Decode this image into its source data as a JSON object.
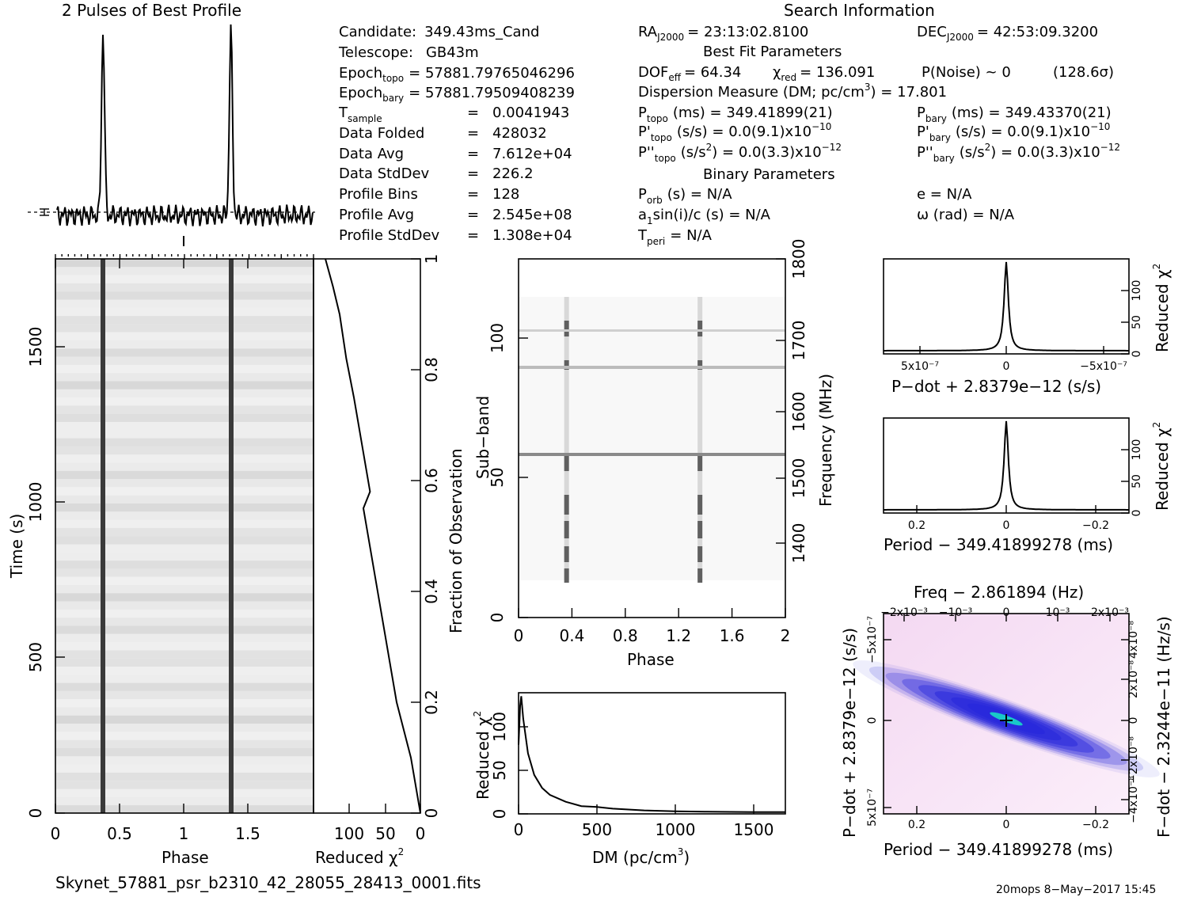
{
  "title_left": "2 Pulses of Best Profile",
  "title_right": "Search Information",
  "info": {
    "candidate_label": "Candidate:",
    "candidate": "349.43ms_Cand",
    "telescope_label": "Telescope:",
    "telescope": "GB43m",
    "epoch_topo_label": "Epoch",
    "epoch_topo_sub": "topo",
    "epoch_topo": "= 57881.79765046296",
    "epoch_bary_label": "Epoch",
    "epoch_bary_sub": "bary",
    "epoch_bary": "= 57881.79509408239",
    "tsample_label": "T",
    "tsample_sub": "sample",
    "tsample": "0.0041943",
    "folded_label": "Data Folded",
    "folded": "428032",
    "avg_label": "Data Avg",
    "avg": "7.612e+04",
    "stddev_label": "Data StdDev",
    "stddev": "226.2",
    "bins_label": "Profile Bins",
    "bins": "128",
    "pavg_label": "Profile Avg",
    "pavg": "2.545e+08",
    "pstd_label": "Profile StdDev",
    "pstd": "1.308e+04",
    "eq": "="
  },
  "search": {
    "ra_label": "RA",
    "ra_sub": "J2000",
    "ra": "= 23:13:02.8100",
    "dec_label": "DEC",
    "dec_sub": "J2000",
    "dec": "= 42:53:09.3200",
    "best_fit": "Best Fit Parameters",
    "dof_label": "DOF",
    "dof_sub": "eff",
    "dof": "= 64.34",
    "chi_label": "χ",
    "chi_sub": "red",
    "chi": "= 136.091",
    "pnoise": "P(Noise) ~ 0",
    "sigma": "(128.6σ)",
    "dm_label": "Dispersion Measure (DM; pc/cm",
    "dm": ") = 17.801",
    "ptopo_label": "P",
    "ptopo_sub": "topo",
    "ptopo": "(ms) =  349.41899(21)",
    "pbary_label": "P",
    "pbary_sub": "bary",
    "pbary": "(ms) =  349.43370(21)",
    "pdtopo_label": "P'",
    "pdtopo_sub": "topo",
    "pdtopo": "(s/s) = 0.0(9.1)x10",
    "pdbary_label": "P'",
    "pdbary_sub": "bary",
    "pdbary": "(s/s) = 0.0(9.1)x10",
    "pdexp": "−10",
    "pddtopo_label": "P''",
    "pddtopo_sub": "topo",
    "pddtopo": "(s/s",
    "pddbary_label": "P''",
    "pddbary_sub": "bary",
    "pddbary": "(s/s",
    "pdd_rest": ") = 0.0(3.3)x10",
    "pddexp": "−12",
    "binary": "Binary Parameters",
    "porb_label": "P",
    "porb_sub": "orb",
    "porb": "(s) = N/A",
    "e": "e = N/A",
    "asini_label": "a",
    "asini_sub": "1",
    "asini": "sin(i)/c (s) = N/A",
    "omega": "ω (rad) = N/A",
    "tperi_label": "T",
    "tperi_sub": "peri",
    "tperi": "= N/A"
  },
  "footer_left": "Skynet_57881_psr_b2310_42_28055_28413_0001.fits",
  "footer_right": "20mops   8−May−2017 15:45",
  "chart_data": [
    {
      "type": "line",
      "title": "2 Pulses of Best Profile",
      "x": [
        0,
        0.35,
        0.36,
        0.37,
        0.38,
        0.5,
        1.0,
        1.35,
        1.36,
        1.37,
        1.38,
        1.5,
        2.0
      ],
      "values": [
        0.05,
        0.05,
        0.9,
        1.0,
        0.1,
        0.05,
        0.05,
        0.05,
        0.9,
        1.0,
        0.1,
        0.05,
        0.05
      ]
    },
    {
      "type": "heatmap",
      "xlabel": "Phase",
      "ylabel": "Time (s)",
      "xlim": [
        0,
        2
      ],
      "ylim": [
        0,
        1780
      ],
      "xticks": [
        "0",
        "0.5",
        "1",
        "1.5"
      ],
      "yticks": [
        "0",
        "500",
        "1000",
        "1500"
      ],
      "pulse_phases": [
        0.36,
        1.36
      ]
    },
    {
      "type": "line",
      "xlabel": "Reduced χ",
      "ylabel": "Fraction of Observation",
      "xticks": [
        "100",
        "50",
        "0"
      ],
      "yticks": [
        "0",
        "0.2",
        "0.4",
        "0.6",
        "0.8",
        "1"
      ],
      "x": [
        0,
        10,
        25,
        35,
        45,
        55,
        60,
        53,
        60,
        70,
        78,
        85,
        92,
        100
      ],
      "y": [
        0,
        0.1,
        0.2,
        0.3,
        0.4,
        0.5,
        0.55,
        0.58,
        0.65,
        0.75,
        0.82,
        0.9,
        0.95,
        1.0
      ]
    },
    {
      "type": "heatmap",
      "xlabel": "Phase",
      "ylabel": "Sub−band",
      "y2label": "Frequency (MHz)",
      "xlim": [
        0,
        2
      ],
      "xticks": [
        "0",
        "0.4",
        "0.8",
        "1.2",
        "1.6",
        "2"
      ],
      "yticks": [
        "0",
        "50",
        "100"
      ],
      "y2ticks": [
        "1400",
        "1500",
        "1600",
        "1700",
        "1800"
      ],
      "pulse_phases": [
        0.36,
        1.36
      ]
    },
    {
      "type": "line",
      "xlabel": "DM (pc/cm",
      "ylabel": "Reduced χ",
      "xticks": [
        "0",
        "500",
        "1000",
        "1500"
      ],
      "yticks": [
        "0",
        "50",
        "100"
      ],
      "x": [
        0,
        10,
        17,
        30,
        60,
        100,
        150,
        200,
        300,
        400,
        500,
        600,
        800,
        1000,
        1200,
        1500,
        1700
      ],
      "values": [
        80,
        125,
        136,
        110,
        70,
        45,
        30,
        22,
        14,
        9,
        8,
        6,
        4,
        3,
        2.5,
        2,
        2
      ]
    },
    {
      "type": "line",
      "xlabel": "P−dot + 2.8379e−12 (s/s)",
      "ylabel": "Reduced χ",
      "xticks": [
        "5x10",
        "0",
        "−5x10"
      ],
      "yticks": [
        "0",
        "50",
        "100"
      ],
      "peak": 136
    },
    {
      "type": "line",
      "xlabel": "Period − 349.41899278 (ms)",
      "ylabel": "Reduced χ",
      "xticks": [
        "0.2",
        "0",
        "−0.2"
      ],
      "yticks": [
        "0",
        "50",
        "100"
      ],
      "peak": 136
    },
    {
      "type": "heatmap",
      "title": "Freq − 2.861894 (Hz)",
      "xlabel": "Period − 349.41899278 (ms)",
      "ylabel": "P−dot + 2.8379e−12 (s/s)",
      "y2label": "F−dot − 2.3244e−11 (Hz/s)",
      "xticks": [
        "0.2",
        "0",
        "−0.2"
      ],
      "x2ticks": [
        "−2x10",
        "−10",
        "0",
        "10",
        "2x10"
      ],
      "yticks": [
        "5x10",
        "0",
        "−5x10"
      ],
      "y2ticks": [
        "−4x10",
        "−2x10",
        "0",
        "2x10",
        "4x10"
      ]
    }
  ]
}
